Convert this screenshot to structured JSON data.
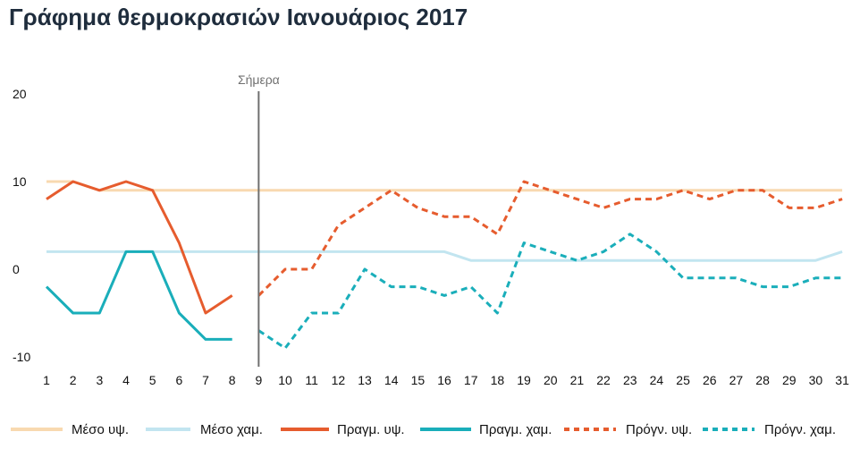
{
  "chart_data": {
    "type": "line",
    "title": "Γράφημα θερμοκρασιών Ιανουάριος 2017",
    "xlabel": "",
    "ylabel": "",
    "x": [
      1,
      2,
      3,
      4,
      5,
      6,
      7,
      8,
      9,
      10,
      11,
      12,
      13,
      14,
      15,
      16,
      17,
      18,
      19,
      20,
      21,
      22,
      23,
      24,
      25,
      26,
      27,
      28,
      29,
      30,
      31
    ],
    "y_ticks": [
      20,
      10,
      0,
      -10
    ],
    "ylim": [
      -10,
      20
    ],
    "today": {
      "label": "Σήμερα",
      "x": 9
    },
    "series": [
      {
        "name": "Μέσο υψ.",
        "style": "solid",
        "color": "#f8d9b0",
        "x": [
          1,
          2,
          3,
          4,
          5,
          6,
          7,
          8,
          9,
          10,
          11,
          12,
          13,
          14,
          15,
          16,
          17,
          18,
          19,
          20,
          21,
          22,
          23,
          24,
          25,
          26,
          27,
          28,
          29,
          30,
          31
        ],
        "values": [
          10,
          10,
          9,
          9,
          9,
          9,
          9,
          9,
          9,
          9,
          9,
          9,
          9,
          9,
          9,
          9,
          9,
          9,
          9,
          9,
          9,
          9,
          9,
          9,
          9,
          9,
          9,
          9,
          9,
          9,
          9
        ]
      },
      {
        "name": "Μέσο χαμ.",
        "style": "solid",
        "color": "#c2e5f0",
        "x": [
          1,
          2,
          3,
          4,
          5,
          6,
          7,
          8,
          9,
          10,
          11,
          12,
          13,
          14,
          15,
          16,
          17,
          18,
          19,
          20,
          21,
          22,
          23,
          24,
          25,
          26,
          27,
          28,
          29,
          30,
          31
        ],
        "values": [
          2,
          2,
          2,
          2,
          2,
          2,
          2,
          2,
          2,
          2,
          2,
          2,
          2,
          2,
          2,
          2,
          1,
          1,
          1,
          1,
          1,
          1,
          1,
          1,
          1,
          1,
          1,
          1,
          1,
          1,
          2
        ]
      },
      {
        "name": "Πραγμ. υψ.",
        "style": "solid",
        "color": "#e65c2e",
        "x": [
          1,
          2,
          3,
          4,
          5,
          6,
          7,
          8
        ],
        "values": [
          8,
          10,
          9,
          10,
          9,
          3,
          -5,
          -3
        ]
      },
      {
        "name": "Πραγμ. χαμ.",
        "style": "solid",
        "color": "#1aaeba",
        "x": [
          1,
          2,
          3,
          4,
          5,
          6,
          7,
          8
        ],
        "values": [
          -2,
          -5,
          -5,
          2,
          2,
          -5,
          -8,
          -8
        ]
      },
      {
        "name": "Πρόγν. υψ.",
        "style": "dashed",
        "color": "#e65c2e",
        "x": [
          9,
          10,
          11,
          12,
          13,
          14,
          15,
          16,
          17,
          18,
          19,
          20,
          21,
          22,
          23,
          24,
          25,
          26,
          27,
          28,
          29,
          30,
          31
        ],
        "values": [
          -3,
          0,
          0,
          5,
          7,
          9,
          7,
          6,
          6,
          4,
          10,
          9,
          8,
          7,
          8,
          8,
          9,
          8,
          9,
          9,
          7,
          7,
          8
        ]
      },
      {
        "name": "Πρόγν. χαμ.",
        "style": "dashed",
        "color": "#1aaeba",
        "x": [
          9,
          10,
          11,
          12,
          13,
          14,
          15,
          16,
          17,
          18,
          19,
          20,
          21,
          22,
          23,
          24,
          25,
          26,
          27,
          28,
          29,
          30,
          31
        ],
        "values": [
          -7,
          -9,
          -5,
          -5,
          0,
          -2,
          -2,
          -3,
          -2,
          -5,
          3,
          2,
          1,
          2,
          4,
          2,
          -1,
          -1,
          -1,
          -2,
          -2,
          -1,
          -1
        ]
      }
    ],
    "legend_position": "bottom"
  }
}
